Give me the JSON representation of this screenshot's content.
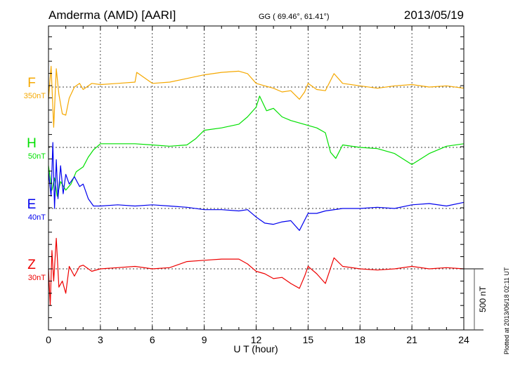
{
  "header": {
    "station": "Amderma (AMD)  [AARI]",
    "coords": "GG ( 69.46°,  61.41°)",
    "date": "2013/05/19"
  },
  "footer": {
    "plotted": "Plotted at 2013/06/18 02:11  UT",
    "scale_label": "500 nT"
  },
  "chart_data": {
    "type": "line",
    "title": "Amderma (AMD)  [AARI]",
    "xlabel": "U T (hour)",
    "ylabel": "",
    "xlim": [
      0,
      24
    ],
    "xticks": [
      "0",
      "3",
      "6",
      "9",
      "12",
      "15",
      "18",
      "21",
      "24"
    ],
    "scale_bar_nT": 500,
    "grid": true,
    "series": [
      {
        "name": "F",
        "offset_label": "350nT",
        "color": "#f5a800",
        "x": [
          0,
          0.15,
          0.3,
          0.45,
          0.6,
          0.8,
          1,
          1.2,
          1.5,
          1.8,
          2,
          2.5,
          3,
          4,
          5,
          5.1,
          6,
          7,
          8,
          9,
          10,
          11,
          11.5,
          12,
          12.5,
          13,
          13.5,
          14,
          14.5,
          14.8,
          15,
          15.5,
          16,
          16.5,
          17,
          18,
          19,
          20,
          21,
          22,
          23,
          24
        ],
        "y": [
          -100,
          170,
          -330,
          150,
          -60,
          -220,
          -230,
          -90,
          0,
          30,
          -20,
          30,
          20,
          30,
          40,
          120,
          30,
          40,
          70,
          100,
          120,
          130,
          110,
          30,
          10,
          -10,
          -40,
          -30,
          -100,
          -40,
          30,
          -20,
          -30,
          110,
          30,
          10,
          -10,
          10,
          20,
          0,
          10,
          -10
        ]
      },
      {
        "name": "H",
        "offset_label": "50nT",
        "color": "#00e000",
        "x": [
          0,
          0.2,
          0.35,
          0.5,
          0.7,
          1,
          1.3,
          1.6,
          2,
          2.3,
          2.6,
          3,
          4,
          5,
          6,
          7,
          8,
          8.5,
          9,
          10,
          11,
          11.5,
          12,
          12.2,
          12.6,
          13,
          13.5,
          14,
          14.5,
          15,
          15.5,
          16,
          16.3,
          16.6,
          17,
          18,
          19,
          20,
          21,
          22,
          23,
          24
        ],
        "y": [
          -150,
          -350,
          -250,
          -400,
          -280,
          -350,
          -300,
          -200,
          -160,
          -80,
          -20,
          30,
          30,
          30,
          20,
          10,
          20,
          70,
          140,
          160,
          190,
          250,
          330,
          420,
          300,
          320,
          250,
          220,
          200,
          180,
          160,
          120,
          -40,
          -90,
          20,
          0,
          -10,
          -50,
          -140,
          -50,
          10,
          30
        ]
      },
      {
        "name": "E",
        "offset_label": "40nT",
        "color": "#0000ee",
        "x": [
          0,
          0.15,
          0.25,
          0.35,
          0.45,
          0.55,
          0.7,
          0.85,
          1,
          1.2,
          1.5,
          1.8,
          2,
          2.3,
          2.6,
          3,
          4,
          5,
          6,
          7,
          8,
          9,
          10,
          11,
          11.5,
          12,
          12.5,
          13,
          13.5,
          14,
          14.5,
          15,
          15.5,
          16,
          17,
          18,
          19,
          20,
          21,
          22,
          23,
          24
        ],
        "y": [
          300,
          100,
          540,
          0,
          400,
          80,
          350,
          120,
          280,
          200,
          260,
          180,
          200,
          80,
          20,
          20,
          30,
          20,
          30,
          20,
          10,
          -10,
          -10,
          -20,
          -10,
          -70,
          -120,
          -130,
          -110,
          -100,
          -180,
          -40,
          -40,
          -20,
          0,
          0,
          10,
          0,
          30,
          40,
          20,
          50
        ]
      },
      {
        "name": "Z",
        "offset_label": "30nT",
        "color": "#ee0000",
        "x": [
          0,
          0.1,
          0.2,
          0.3,
          0.45,
          0.6,
          0.8,
          1,
          1.2,
          1.5,
          1.8,
          2,
          2.5,
          3,
          4,
          5,
          6,
          7,
          8,
          9,
          10,
          11,
          11.5,
          12,
          12.5,
          13,
          13.5,
          14,
          14.5,
          14.8,
          15,
          15.5,
          16,
          16.5,
          17,
          18,
          19,
          20,
          21,
          22,
          23,
          24
        ],
        "y": [
          0,
          -300,
          150,
          -100,
          250,
          -150,
          -100,
          -200,
          20,
          -60,
          20,
          30,
          -20,
          0,
          10,
          20,
          0,
          10,
          60,
          70,
          80,
          80,
          40,
          -20,
          -40,
          -80,
          -70,
          -120,
          -160,
          -60,
          20,
          -40,
          -120,
          90,
          20,
          0,
          -10,
          0,
          20,
          0,
          10,
          0
        ]
      }
    ]
  }
}
